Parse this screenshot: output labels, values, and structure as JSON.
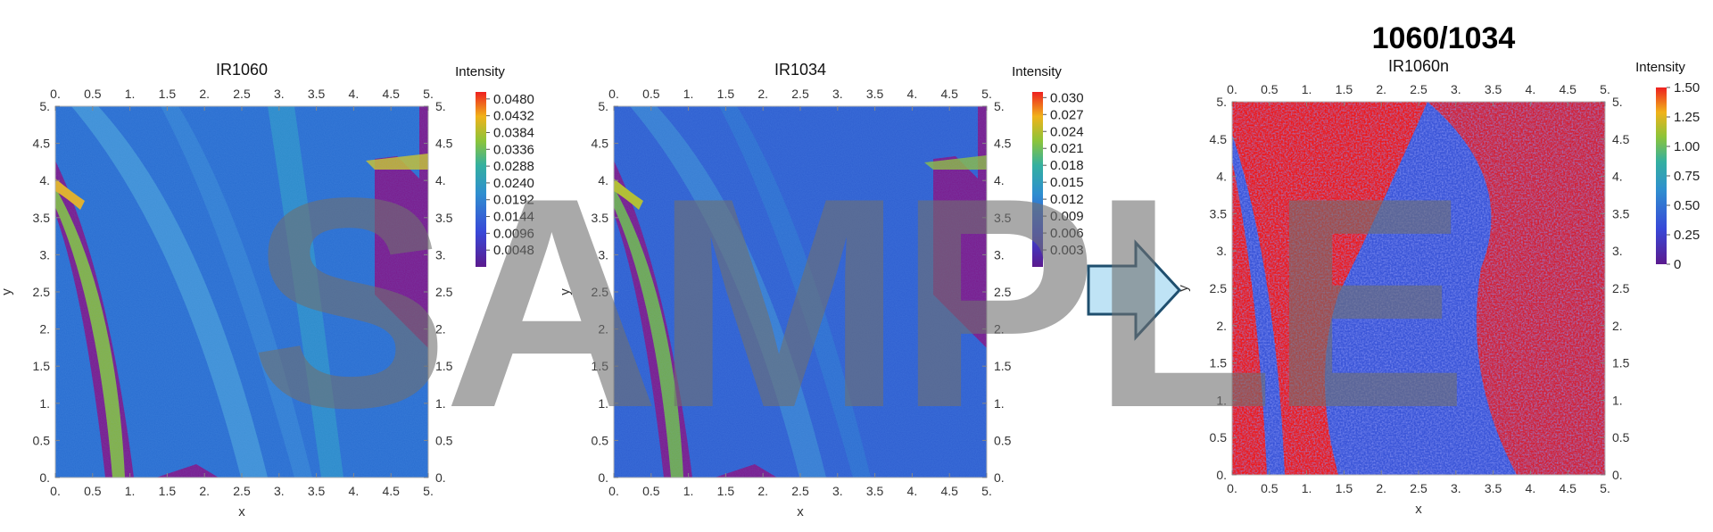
{
  "figure": {
    "main_title": "1060/1034",
    "watermark": "SAMPLE"
  },
  "chart_data": [
    {
      "type": "heatmap",
      "title": "IR1060",
      "xlabel": "x",
      "ylabel": "y",
      "xlim": [
        0,
        5
      ],
      "ylim": [
        0,
        5
      ],
      "xticks": [
        "0.",
        "0.5",
        "1.",
        "1.5",
        "2.",
        "2.5",
        "3.",
        "3.5",
        "4.",
        "4.5",
        "5."
      ],
      "yticks": [
        "0.",
        "0.5",
        "1.",
        "1.5",
        "2.",
        "2.5",
        "3.",
        "3.5",
        "4.",
        "4.5",
        "5."
      ],
      "legend_title": "Intensity",
      "legend_ticks": [
        "0.0480",
        "0.0432",
        "0.0384",
        "0.0336",
        "0.0288",
        "0.0240",
        "0.0192",
        "0.0144",
        "0.0096",
        "0.0048"
      ],
      "color_range": [
        0,
        0.05
      ]
    },
    {
      "type": "heatmap",
      "title": "IR1034",
      "xlabel": "x",
      "ylabel": "y",
      "xlim": [
        0,
        5
      ],
      "ylim": [
        0,
        5
      ],
      "xticks": [
        "0.",
        "0.5",
        "1.",
        "1.5",
        "2.",
        "2.5",
        "3.",
        "3.5",
        "4.",
        "4.5",
        "5."
      ],
      "yticks": [
        "0.",
        "0.5",
        "1.",
        "1.5",
        "2.",
        "2.5",
        "3.",
        "3.5",
        "4.",
        "4.5",
        "5."
      ],
      "legend_title": "Intensity",
      "legend_ticks": [
        "0.030",
        "0.027",
        "0.024",
        "0.021",
        "0.018",
        "0.015",
        "0.012",
        "0.009",
        "0.006",
        "0.003"
      ],
      "color_range": [
        0,
        0.031
      ]
    },
    {
      "type": "heatmap",
      "title": "IR1060n",
      "xlabel": "x",
      "ylabel": "y",
      "xlim": [
        0,
        5
      ],
      "ylim": [
        0,
        5
      ],
      "xticks": [
        "0.",
        "0.5",
        "1.",
        "1.5",
        "2.",
        "2.5",
        "3.",
        "3.5",
        "4.",
        "4.5",
        "5."
      ],
      "yticks": [
        "0.",
        "0.5",
        "1.",
        "1.5",
        "2.",
        "2.5",
        "3.",
        "3.5",
        "4.",
        "4.5",
        "5."
      ],
      "legend_title": "Intensity",
      "legend_ticks": [
        "1.50",
        "1.25",
        "1.00",
        "0.75",
        "0.50",
        "0.25",
        "0"
      ],
      "color_range": [
        0,
        1.5
      ]
    }
  ],
  "colors": {
    "plot_background": "#7a1a8c",
    "tissue_blue": "#3a5fd8",
    "ratio_red": "#f01818",
    "arrow_fill": "#bfe3f5",
    "arrow_stroke": "#1f4f6e",
    "watermark": "#6f6f6f"
  }
}
